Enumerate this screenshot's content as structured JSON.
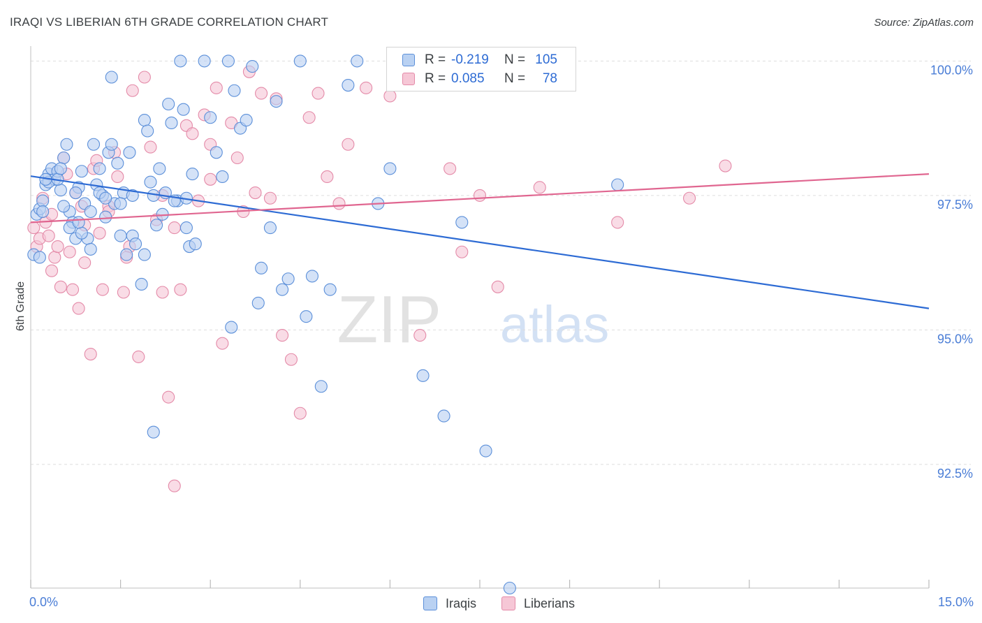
{
  "title": "IRAQI VS LIBERIAN 6TH GRADE CORRELATION CHART",
  "source": "Source: ZipAtlas.com",
  "watermark": {
    "zip": "ZIP",
    "atlas": "atlas"
  },
  "colors": {
    "iraqi_fill": "#b9d1f2",
    "iraqi_stroke": "#5b8fd9",
    "iraqi_line": "#2d6bd4",
    "liberian_fill": "#f6c7d6",
    "liberian_stroke": "#e48aa8",
    "liberian_line": "#e06690",
    "tick_text": "#4a7dd6",
    "grid": "#dddddd"
  },
  "legend": {
    "rows": [
      {
        "r_label": "R =",
        "r_value": "-0.219",
        "n_label": "N =",
        "n_value": "105"
      },
      {
        "r_label": "R =",
        "r_value": "0.085",
        "n_label": "N =",
        "n_value": "78"
      }
    ]
  },
  "bottom_legend": {
    "iraqi": "Iraqis",
    "liberian": "Liberians"
  },
  "chart_data": {
    "type": "scatter",
    "title": "IRAQI VS LIBERIAN 6TH GRADE CORRELATION CHART",
    "xlabel": "",
    "ylabel": "6th Grade",
    "xlim": [
      0,
      15
    ],
    "ylim": [
      90.2,
      100.2
    ],
    "x_tick_labels": [
      "0.0%",
      "15.0%"
    ],
    "y_ticks": [
      100.0,
      97.5,
      95.0,
      92.5
    ],
    "y_tick_labels": [
      "100.0%",
      "97.5%",
      "95.0%",
      "92.5%"
    ],
    "grid": true,
    "series": [
      {
        "name": "Iraqis",
        "r": -0.219,
        "n": 105,
        "trend": [
          [
            0,
            97.86
          ],
          [
            15,
            95.4
          ]
        ],
        "points": [
          [
            0.05,
            96.4
          ],
          [
            0.1,
            97.15
          ],
          [
            0.15,
            97.25
          ],
          [
            0.2,
            97.4
          ],
          [
            0.25,
            97.7
          ],
          [
            0.3,
            97.9
          ],
          [
            0.35,
            98.0
          ],
          [
            0.4,
            97.8
          ],
          [
            0.45,
            97.95
          ],
          [
            0.5,
            97.6
          ],
          [
            0.55,
            98.2
          ],
          [
            0.6,
            98.45
          ],
          [
            0.65,
            97.2
          ],
          [
            0.7,
            97.0
          ],
          [
            0.75,
            96.7
          ],
          [
            0.8,
            97.65
          ],
          [
            0.85,
            97.95
          ],
          [
            0.9,
            97.35
          ],
          [
            0.95,
            96.7
          ],
          [
            1.0,
            96.5
          ],
          [
            1.05,
            98.45
          ],
          [
            1.1,
            97.7
          ],
          [
            1.15,
            98.0
          ],
          [
            1.2,
            97.5
          ],
          [
            1.25,
            97.1
          ],
          [
            1.3,
            98.3
          ],
          [
            1.35,
            98.45
          ],
          [
            1.4,
            97.35
          ],
          [
            1.45,
            98.1
          ],
          [
            1.5,
            96.75
          ],
          [
            1.55,
            97.55
          ],
          [
            1.6,
            96.4
          ],
          [
            1.65,
            98.3
          ],
          [
            1.7,
            96.75
          ],
          [
            1.75,
            96.6
          ],
          [
            1.85,
            95.85
          ],
          [
            1.9,
            98.9
          ],
          [
            1.95,
            98.7
          ],
          [
            2.0,
            97.75
          ],
          [
            2.05,
            97.5
          ],
          [
            2.1,
            96.95
          ],
          [
            2.15,
            98.0
          ],
          [
            2.2,
            97.15
          ],
          [
            2.25,
            97.55
          ],
          [
            2.3,
            99.2
          ],
          [
            2.35,
            98.85
          ],
          [
            2.45,
            97.4
          ],
          [
            2.5,
            100.0
          ],
          [
            2.55,
            99.1
          ],
          [
            2.6,
            96.9
          ],
          [
            2.65,
            96.55
          ],
          [
            2.7,
            97.9
          ],
          [
            2.75,
            96.6
          ],
          [
            2.9,
            100.0
          ],
          [
            3.0,
            98.95
          ],
          [
            3.1,
            98.3
          ],
          [
            3.2,
            97.85
          ],
          [
            3.3,
            100.0
          ],
          [
            3.4,
            99.45
          ],
          [
            3.5,
            98.75
          ],
          [
            3.6,
            98.9
          ],
          [
            3.7,
            99.9
          ],
          [
            3.8,
            95.5
          ],
          [
            3.85,
            96.15
          ],
          [
            4.0,
            96.9
          ],
          [
            4.1,
            99.25
          ],
          [
            4.2,
            95.75
          ],
          [
            4.3,
            95.95
          ],
          [
            4.5,
            100.0
          ],
          [
            4.6,
            95.25
          ],
          [
            4.7,
            96.0
          ],
          [
            4.85,
            93.95
          ],
          [
            5.0,
            95.75
          ],
          [
            5.3,
            99.55
          ],
          [
            5.45,
            100.0
          ],
          [
            5.8,
            97.35
          ],
          [
            6.0,
            98.0
          ],
          [
            6.55,
            94.15
          ],
          [
            6.9,
            93.4
          ],
          [
            7.2,
            97.0
          ],
          [
            7.6,
            92.75
          ],
          [
            8.0,
            90.2
          ],
          [
            9.8,
            97.7
          ],
          [
            1.35,
            99.7
          ],
          [
            1.5,
            97.35
          ],
          [
            2.4,
            97.4
          ],
          [
            0.65,
            96.9
          ],
          [
            1.15,
            97.55
          ],
          [
            3.35,
            95.05
          ],
          [
            2.05,
            93.1
          ],
          [
            0.3,
            97.75
          ],
          [
            0.45,
            97.8
          ],
          [
            0.85,
            96.8
          ],
          [
            1.9,
            96.4
          ],
          [
            0.2,
            97.2
          ],
          [
            1.7,
            97.5
          ],
          [
            0.5,
            98.0
          ],
          [
            1.0,
            97.2
          ],
          [
            2.6,
            97.45
          ],
          [
            0.75,
            97.55
          ],
          [
            0.25,
            97.8
          ],
          [
            0.55,
            97.3
          ],
          [
            1.25,
            97.45
          ],
          [
            0.8,
            97.0
          ],
          [
            0.15,
            96.35
          ]
        ]
      },
      {
        "name": "Liberians",
        "r": 0.085,
        "n": 78,
        "trend": [
          [
            0,
            97.0
          ],
          [
            15,
            97.9
          ]
        ],
        "points": [
          [
            0.05,
            96.9
          ],
          [
            0.1,
            96.55
          ],
          [
            0.15,
            96.7
          ],
          [
            0.2,
            97.45
          ],
          [
            0.25,
            97.0
          ],
          [
            0.3,
            96.75
          ],
          [
            0.35,
            96.1
          ],
          [
            0.4,
            96.35
          ],
          [
            0.5,
            95.8
          ],
          [
            0.55,
            98.2
          ],
          [
            0.6,
            97.9
          ],
          [
            0.65,
            96.45
          ],
          [
            0.7,
            95.75
          ],
          [
            0.75,
            97.55
          ],
          [
            0.8,
            95.4
          ],
          [
            0.85,
            97.3
          ],
          [
            0.9,
            96.25
          ],
          [
            1.0,
            94.55
          ],
          [
            1.05,
            98.0
          ],
          [
            1.1,
            98.15
          ],
          [
            1.15,
            96.8
          ],
          [
            1.2,
            95.75
          ],
          [
            1.3,
            97.3
          ],
          [
            1.4,
            98.3
          ],
          [
            1.45,
            97.85
          ],
          [
            1.55,
            95.7
          ],
          [
            1.65,
            96.55
          ],
          [
            1.7,
            99.45
          ],
          [
            1.8,
            94.5
          ],
          [
            1.9,
            99.7
          ],
          [
            2.0,
            98.4
          ],
          [
            2.1,
            97.05
          ],
          [
            2.2,
            95.7
          ],
          [
            2.3,
            93.75
          ],
          [
            2.4,
            92.1
          ],
          [
            2.5,
            95.75
          ],
          [
            2.6,
            98.8
          ],
          [
            2.7,
            98.65
          ],
          [
            2.8,
            97.4
          ],
          [
            2.9,
            99.0
          ],
          [
            3.0,
            98.45
          ],
          [
            3.1,
            99.5
          ],
          [
            3.2,
            94.75
          ],
          [
            3.35,
            98.85
          ],
          [
            3.45,
            98.2
          ],
          [
            3.55,
            97.2
          ],
          [
            3.65,
            99.8
          ],
          [
            3.75,
            97.55
          ],
          [
            3.85,
            99.4
          ],
          [
            4.0,
            97.45
          ],
          [
            4.1,
            99.3
          ],
          [
            4.2,
            94.9
          ],
          [
            4.35,
            94.45
          ],
          [
            4.5,
            93.45
          ],
          [
            4.65,
            98.95
          ],
          [
            4.8,
            99.4
          ],
          [
            4.95,
            97.85
          ],
          [
            5.15,
            97.35
          ],
          [
            5.3,
            98.45
          ],
          [
            5.6,
            99.5
          ],
          [
            6.0,
            99.35
          ],
          [
            6.5,
            94.9
          ],
          [
            7.0,
            98.0
          ],
          [
            7.2,
            96.45
          ],
          [
            7.5,
            97.5
          ],
          [
            7.8,
            95.8
          ],
          [
            8.5,
            97.65
          ],
          [
            9.8,
            97.0
          ],
          [
            11.0,
            97.45
          ],
          [
            11.6,
            98.05
          ],
          [
            0.45,
            96.55
          ],
          [
            0.9,
            96.95
          ],
          [
            1.6,
            96.35
          ],
          [
            2.4,
            96.9
          ],
          [
            3.0,
            97.8
          ],
          [
            1.3,
            97.2
          ],
          [
            2.2,
            97.5
          ],
          [
            0.35,
            97.15
          ]
        ]
      }
    ]
  }
}
